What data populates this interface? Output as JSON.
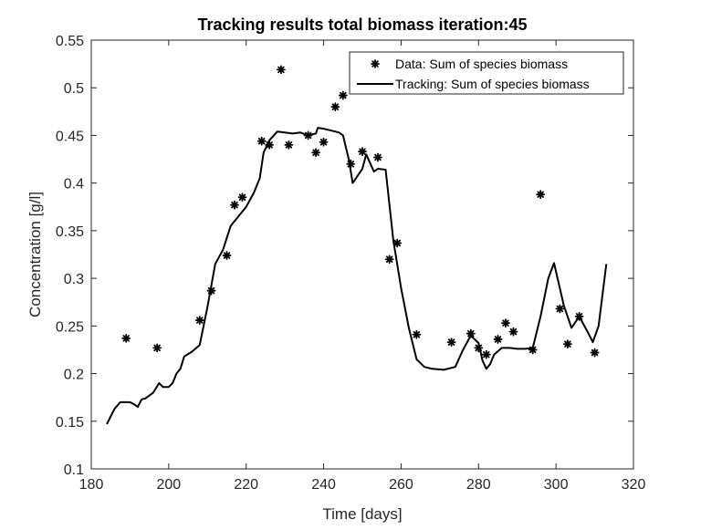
{
  "chart_data": {
    "type": "scatter",
    "title": "Tracking results total biomass iteration:45",
    "xlabel": "Time [days]",
    "ylabel": "Concentration [g/l]",
    "xlim": [
      180,
      320
    ],
    "ylim": [
      0.1,
      0.55
    ],
    "xticks": [
      180,
      200,
      220,
      240,
      260,
      280,
      300,
      320
    ],
    "yticks": [
      0.1,
      0.15,
      0.2,
      0.25,
      0.3,
      0.35,
      0.4,
      0.45,
      0.5,
      0.55
    ],
    "xtick_labels": [
      "180",
      "200",
      "220",
      "240",
      "260",
      "280",
      "300",
      "320"
    ],
    "ytick_labels": [
      "0.1",
      "0.15",
      "0.2",
      "0.25",
      "0.3",
      "0.35",
      "0.4",
      "0.45",
      "0.5",
      "0.55"
    ],
    "grid": false,
    "legend_position": "top-right",
    "series": [
      {
        "name": "Data: Sum of species biomass",
        "kind": "markers",
        "marker": "*",
        "color": "#000000",
        "x": [
          189,
          197,
          208,
          211,
          215,
          217,
          219,
          224,
          226,
          229,
          231,
          236,
          238,
          240,
          243,
          245,
          247,
          250,
          254,
          257,
          259,
          264,
          273,
          278,
          280,
          282,
          285,
          287,
          289,
          294,
          296,
          301,
          303,
          306,
          310
        ],
        "y": [
          0.237,
          0.227,
          0.256,
          0.287,
          0.324,
          0.377,
          0.385,
          0.444,
          0.44,
          0.519,
          0.44,
          0.45,
          0.432,
          0.443,
          0.48,
          0.492,
          0.42,
          0.433,
          0.427,
          0.32,
          0.337,
          0.241,
          0.233,
          0.242,
          0.227,
          0.22,
          0.236,
          0.253,
          0.244,
          0.225,
          0.388,
          0.268,
          0.231,
          0.26,
          0.222
        ]
      },
      {
        "name": "Tracking: Sum of species biomass",
        "kind": "line",
        "color": "#000000",
        "x": [
          184,
          186,
          187.5,
          188.5,
          190,
          191,
          192,
          193,
          194,
          196,
          197.5,
          198.5,
          200,
          201,
          202,
          203,
          204,
          206,
          208,
          210,
          212,
          214,
          216,
          218,
          220,
          222,
          223.5,
          224.5,
          226,
          228,
          230,
          232,
          234,
          236,
          238,
          238.5,
          240,
          242,
          244,
          245,
          246.5,
          247.5,
          250,
          251,
          253,
          254,
          256,
          258,
          260,
          262,
          264,
          266,
          268,
          271,
          274,
          276,
          278,
          280,
          281,
          282,
          283,
          284,
          286,
          288,
          290,
          292,
          294,
          296,
          298,
          299.5,
          302,
          304,
          306,
          308,
          309.5,
          311,
          313
        ],
        "y": [
          0.147,
          0.163,
          0.17,
          0.17,
          0.17,
          0.168,
          0.165,
          0.173,
          0.174,
          0.18,
          0.19,
          0.186,
          0.186,
          0.19,
          0.2,
          0.205,
          0.218,
          0.223,
          0.23,
          0.27,
          0.315,
          0.33,
          0.355,
          0.365,
          0.375,
          0.39,
          0.405,
          0.432,
          0.445,
          0.454,
          0.453,
          0.452,
          0.453,
          0.45,
          0.452,
          0.458,
          0.457,
          0.455,
          0.453,
          0.45,
          0.425,
          0.4,
          0.415,
          0.43,
          0.412,
          0.415,
          0.414,
          0.34,
          0.29,
          0.248,
          0.215,
          0.207,
          0.205,
          0.204,
          0.207,
          0.225,
          0.24,
          0.232,
          0.214,
          0.205,
          0.21,
          0.22,
          0.227,
          0.227,
          0.226,
          0.226,
          0.227,
          0.26,
          0.3,
          0.316,
          0.272,
          0.248,
          0.26,
          0.245,
          0.233,
          0.25,
          0.315
        ]
      }
    ]
  }
}
